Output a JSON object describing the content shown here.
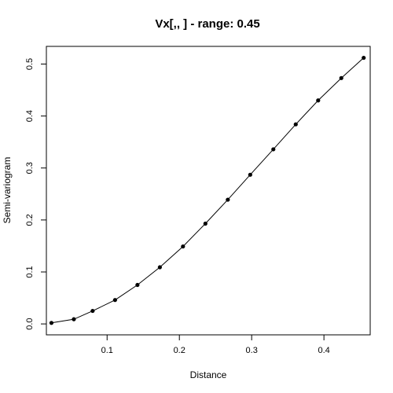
{
  "chart_data": {
    "type": "line",
    "title": "Vx[,,   ] - range: 0.45",
    "xlabel": "Distance",
    "ylabel": "Semi-variogram",
    "xlim": [
      0.016,
      0.464
    ],
    "ylim": [
      -0.021,
      0.534
    ],
    "x_ticks": [
      0.1,
      0.2,
      0.3,
      0.4
    ],
    "x_tick_labels": [
      "0.1",
      "0.2",
      "0.3",
      "0.4"
    ],
    "y_ticks": [
      0.0,
      0.1,
      0.2,
      0.3,
      0.4,
      0.5
    ],
    "y_tick_labels": [
      "0.0",
      "0.1",
      "0.2",
      "0.3",
      "0.4",
      "0.5"
    ],
    "grid": false,
    "legend": "none",
    "line_color": "#000000",
    "point_color": "#000000",
    "series": [
      {
        "x": [
          0.023,
          0.054,
          0.08,
          0.111,
          0.142,
          0.173,
          0.205,
          0.236,
          0.267,
          0.298,
          0.33,
          0.361,
          0.392,
          0.424,
          0.455
        ],
        "values": [
          0.002,
          0.009,
          0.025,
          0.046,
          0.075,
          0.109,
          0.149,
          0.193,
          0.239,
          0.287,
          0.336,
          0.384,
          0.43,
          0.473,
          0.512
        ]
      }
    ]
  }
}
